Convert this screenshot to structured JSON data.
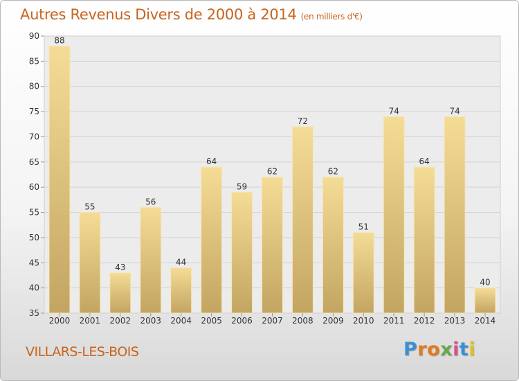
{
  "header": {
    "title": "Autres Revenus Divers de 2000 à 2014",
    "subtitle": "(en milliers d'€)"
  },
  "footer": {
    "commune": "VILLARS-LES-BOIS",
    "brand": "Proxiti",
    "brand_colors": [
      "#3a8fd4",
      "#e07b1e",
      "#e07b1e",
      "#6aa84f",
      "#d94f8a",
      "#3a8fd4",
      "#e0c21e"
    ]
  },
  "colors": {
    "title": "#c8641e",
    "bar_top": "#f5dc96",
    "bar_bottom": "#c2a562",
    "grid": "#d2d2d2",
    "axis_text": "#333333"
  },
  "chart_data": {
    "type": "bar",
    "title": "Autres Revenus Divers de 2000 à 2014",
    "subtitle": "(en milliers d'€)",
    "categories": [
      "2000",
      "2001",
      "2002",
      "2003",
      "2004",
      "2005",
      "2006",
      "2007",
      "2008",
      "2009",
      "2010",
      "2011",
      "2012",
      "2013",
      "2014"
    ],
    "values": [
      88,
      55,
      43,
      56,
      44,
      64,
      59,
      62,
      72,
      62,
      51,
      74,
      64,
      74,
      40
    ],
    "ylim": [
      35,
      90
    ],
    "yticks": [
      35,
      40,
      45,
      50,
      55,
      60,
      65,
      70,
      75,
      80,
      85,
      90
    ],
    "grid": true,
    "data_labels": true
  }
}
